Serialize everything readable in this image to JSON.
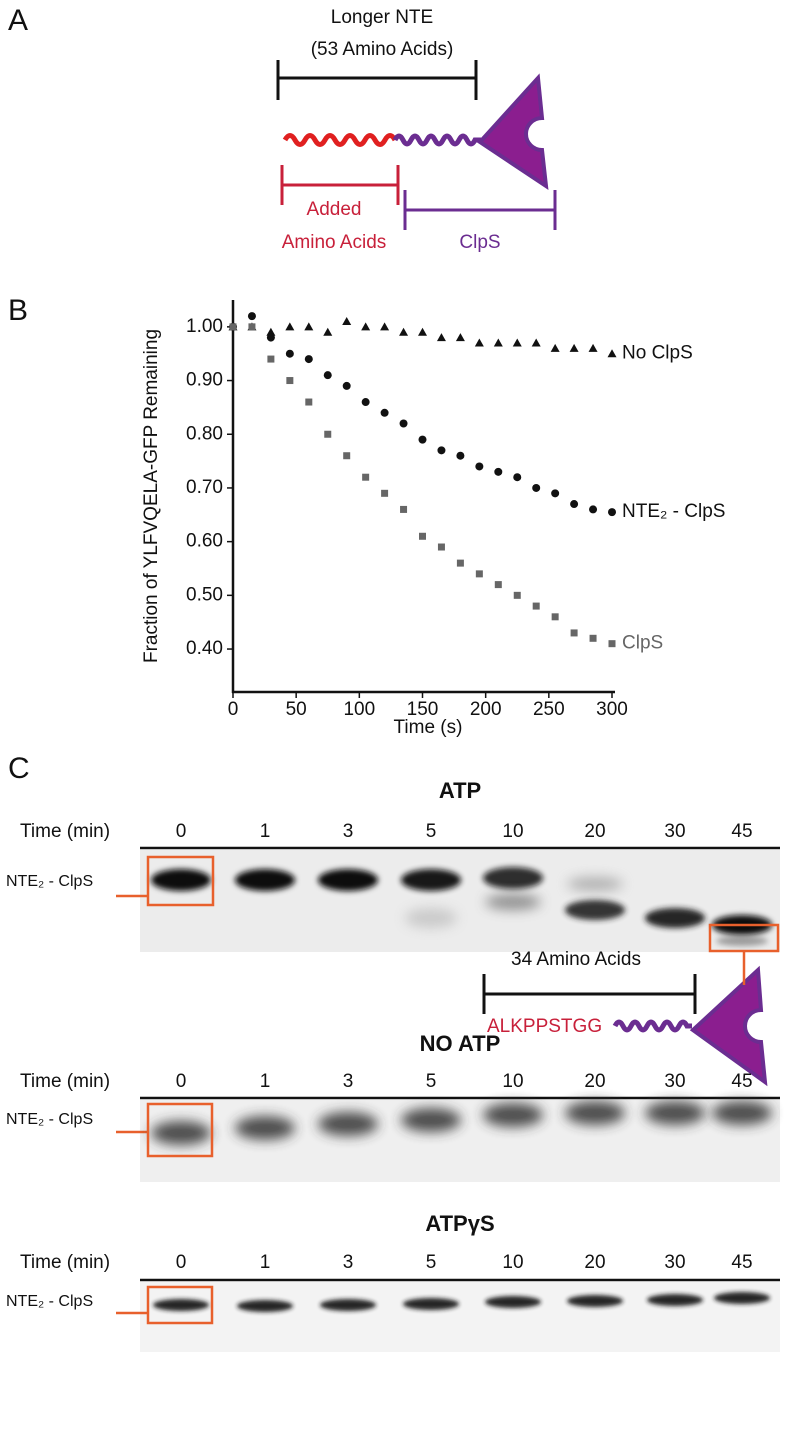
{
  "panel_labels": [
    "A",
    "B",
    "C"
  ],
  "panel_a": {
    "bracket_label": "Longer NTE",
    "bracket_sublabel": "(53 Amino Acids)",
    "added_label": [
      "Added",
      "Amino Acids"
    ],
    "clps_label": "ClpS"
  },
  "chart_data": {
    "type": "scatter",
    "xlabel": "Time (s)",
    "ylabel": "Fraction of YLFVQELA-GFP Remaining",
    "x": [
      0,
      15,
      30,
      45,
      60,
      75,
      90,
      105,
      120,
      135,
      150,
      165,
      180,
      195,
      210,
      225,
      240,
      255,
      270,
      285,
      300
    ],
    "series": [
      {
        "name": "No ClpS",
        "color": "#111111",
        "marker": "triangle",
        "values": [
          1.0,
          1.0,
          0.99,
          1.0,
          1.0,
          0.99,
          1.01,
          1.0,
          1.0,
          0.99,
          0.99,
          0.98,
          0.98,
          0.97,
          0.97,
          0.97,
          0.97,
          0.96,
          0.96,
          0.96,
          0.95
        ]
      },
      {
        "name": "NTE₂ - ClpS",
        "color": "#111111",
        "marker": "circle",
        "values": [
          1.0,
          1.02,
          0.98,
          0.95,
          0.94,
          0.91,
          0.89,
          0.86,
          0.84,
          0.82,
          0.79,
          0.77,
          0.76,
          0.74,
          0.73,
          0.72,
          0.7,
          0.69,
          0.67,
          0.66,
          0.655
        ]
      },
      {
        "name": "ClpS",
        "color": "#666666",
        "marker": "square",
        "values": [
          1.0,
          1.0,
          0.94,
          0.9,
          0.86,
          0.8,
          0.76,
          0.72,
          0.69,
          0.66,
          0.61,
          0.59,
          0.56,
          0.54,
          0.52,
          0.5,
          0.48,
          0.46,
          0.43,
          0.42,
          0.41
        ]
      }
    ],
    "xlim": [
      0,
      300
    ],
    "ylim": [
      0.32,
      1.05
    ],
    "xticks": [
      0,
      50,
      100,
      150,
      200,
      250,
      300
    ],
    "yticks": [
      {
        "value": 1.0,
        "label": "1.00"
      },
      {
        "value": 0.9,
        "label": "0.90"
      },
      {
        "value": 0.8,
        "label": "0.80"
      },
      {
        "value": 0.7,
        "label": "0.70"
      },
      {
        "value": 0.6,
        "label": "0.60"
      },
      {
        "value": 0.5,
        "label": "0.50"
      },
      {
        "value": 0.4,
        "label": "0.40"
      }
    ],
    "grid": false
  },
  "panel_c": {
    "time_label": "Time (min)",
    "lanes": [
      "0",
      "1",
      "3",
      "5",
      "10",
      "20",
      "30",
      "45"
    ],
    "band_label": "NTE₂ - ClpS",
    "gels": [
      {
        "title": "ATP"
      },
      {
        "title": "NO ATP"
      },
      {
        "title": "ATPγS"
      }
    ],
    "inset": {
      "length_label": "34 Amino Acids",
      "sequence": "ALKPPSTGG"
    }
  }
}
